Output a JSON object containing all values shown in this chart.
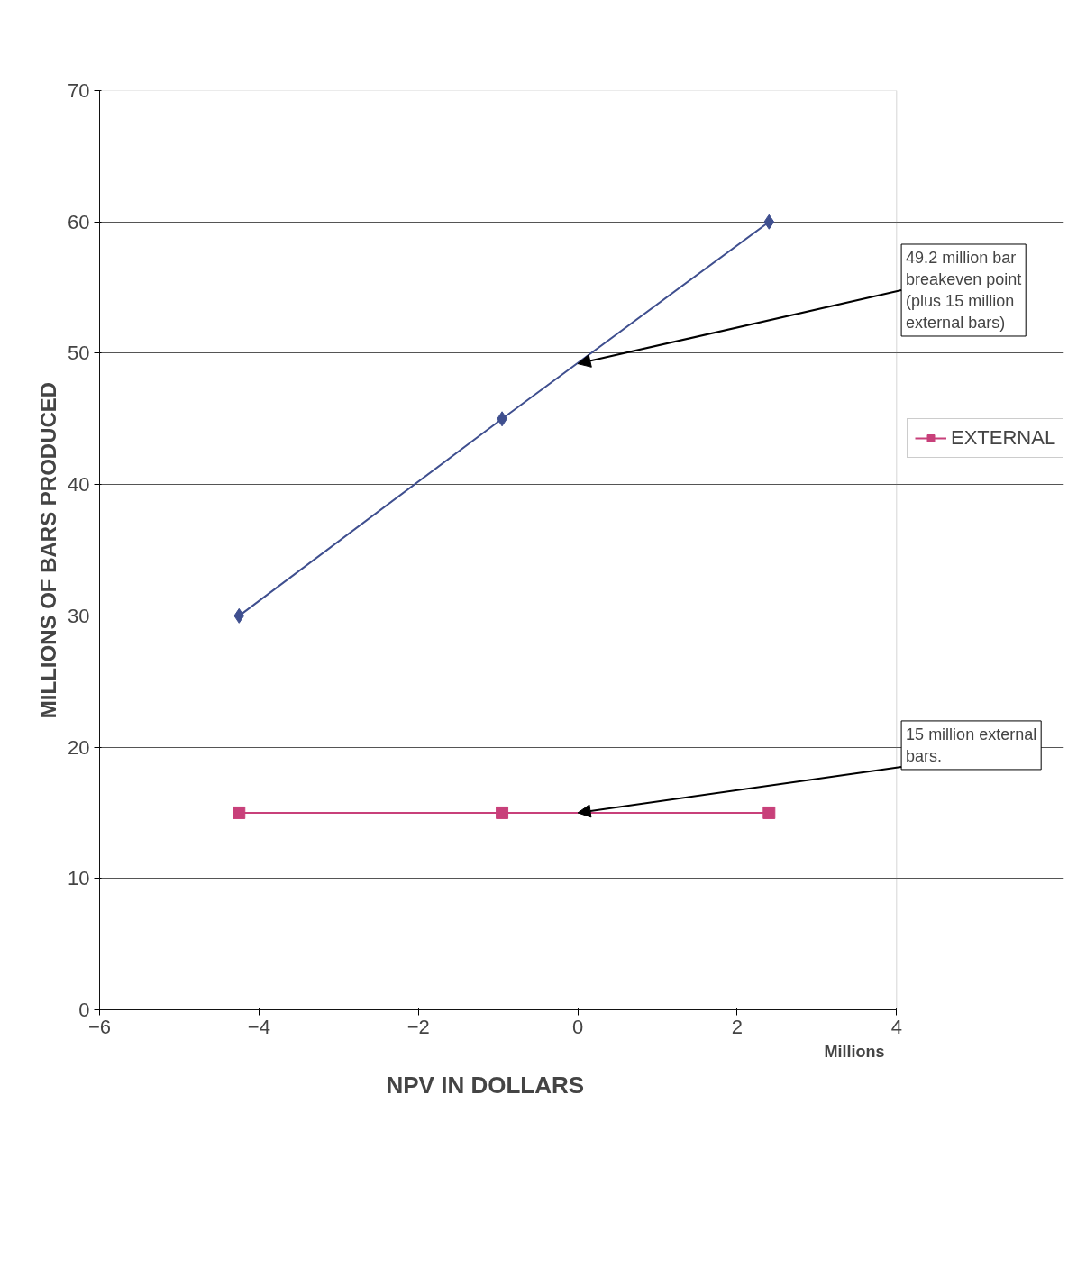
{
  "chart_data": {
    "type": "line",
    "xlabel": "NPV IN DOLLARS",
    "ylabel": "MILLIONS OF BARS PRODUCED",
    "xlim": [
      -6,
      4
    ],
    "xticks": [
      -6,
      -4,
      -2,
      0,
      2,
      4
    ],
    "ylim": [
      0,
      70
    ],
    "yticks": [
      0,
      10,
      20,
      30,
      40,
      50,
      60,
      70
    ],
    "grid": "y",
    "legend": "right",
    "line_style": "solid",
    "series": [
      {
        "color": "#3f4f8f",
        "marker": "diamond",
        "x": [
          -4.25,
          -0.95,
          2.4
        ],
        "values": [
          30,
          45,
          60
        ]
      },
      {
        "name": "EXTERNAL",
        "color": "#c8407a",
        "marker": "square",
        "x": [
          -4.25,
          -0.95,
          2.4
        ],
        "values": [
          15,
          15,
          15
        ]
      }
    ],
    "annotations": [
      {
        "text": "49.2 million bar breakeven point (plus 15 million external bars)",
        "x": 0,
        "y": 49.2
      },
      {
        "text": "15 million external bars.",
        "x": 0,
        "y": 15
      },
      "Millions"
    ]
  }
}
